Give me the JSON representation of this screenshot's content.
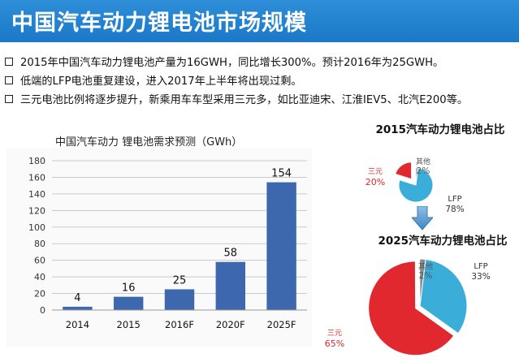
{
  "header": {
    "title": "中国汽车动力锂电池市场规模"
  },
  "bullets": [
    "2015年中国汽车动力锂电池产量为16GWH，同比增长300%。预计2016年为25GWH。",
    "低端的LFP电池重复建设，进入2017年上半年将出现过剩。",
    "三元电池比例将逐步提升，新乘用车车型采用三元多，如比亚迪宋、江淮IEV5、北汽E200等。"
  ],
  "chart_data": [
    {
      "type": "bar",
      "title": "中国汽车动力 锂电池需求预测（GWh）",
      "categories": [
        "2014",
        "2015",
        "2016F",
        "2020F",
        "2025F"
      ],
      "values": [
        4,
        16,
        25,
        58,
        154
      ],
      "data_labels": [
        "4",
        "16",
        "25",
        "58",
        "154"
      ],
      "ylim": [
        0,
        180
      ],
      "yticks": [
        0,
        20,
        40,
        60,
        80,
        100,
        120,
        140,
        160,
        180
      ],
      "grid": true,
      "color": "#3d68ad"
    },
    {
      "type": "pie",
      "title": "2015汽车动力锂电池占比",
      "labels": [
        "LFP",
        "三元",
        "其他"
      ],
      "values": [
        78,
        20,
        2
      ],
      "value_labels": [
        "78%",
        "20%",
        "2%"
      ],
      "colors": [
        "#3aaed8",
        "#e0282e",
        "#8a8a8a"
      ]
    },
    {
      "type": "pie",
      "title": "2025汽车动力锂电池占比",
      "labels": [
        "LFP",
        "三元",
        "其他"
      ],
      "values": [
        33,
        65,
        2
      ],
      "value_labels": [
        "33%",
        "65%",
        "2%"
      ],
      "colors": [
        "#3aaed8",
        "#e0282e",
        "#8a8a8a"
      ]
    }
  ]
}
